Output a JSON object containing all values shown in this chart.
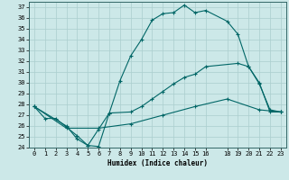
{
  "xlabel": "Humidex (Indice chaleur)",
  "ylabel": "",
  "bg_color": "#cce8e8",
  "grid_color": "#aacece",
  "line_color": "#006666",
  "xlim": [
    -0.5,
    23.5
  ],
  "ylim": [
    24,
    37.5
  ],
  "xticks": [
    0,
    1,
    2,
    3,
    4,
    5,
    6,
    7,
    8,
    9,
    10,
    11,
    12,
    13,
    14,
    15,
    16,
    18,
    19,
    20,
    21,
    22,
    23
  ],
  "yticks": [
    24,
    25,
    26,
    27,
    28,
    29,
    30,
    31,
    32,
    33,
    34,
    35,
    36,
    37
  ],
  "line1_x": [
    0,
    1,
    2,
    3,
    4,
    5,
    6,
    7,
    8,
    9,
    10,
    11,
    12,
    13,
    14,
    15,
    16,
    18,
    19,
    20,
    21,
    22,
    23
  ],
  "line1_y": [
    27.8,
    26.7,
    26.7,
    25.9,
    25.1,
    24.2,
    24.1,
    27.2,
    30.2,
    32.5,
    34.0,
    35.8,
    36.4,
    36.5,
    37.2,
    36.5,
    36.7,
    35.7,
    34.5,
    31.5,
    30.0,
    27.3,
    27.3
  ],
  "line2_x": [
    0,
    3,
    4,
    5,
    6,
    7,
    9,
    10,
    11,
    12,
    13,
    14,
    15,
    16,
    19,
    20,
    21,
    22,
    23
  ],
  "line2_y": [
    27.8,
    26.0,
    24.8,
    24.2,
    25.7,
    27.2,
    27.3,
    27.8,
    28.5,
    29.2,
    29.9,
    30.5,
    30.8,
    31.5,
    31.8,
    31.5,
    29.9,
    27.5,
    27.3
  ],
  "line3_x": [
    0,
    3,
    6,
    9,
    12,
    15,
    18,
    21,
    23
  ],
  "line3_y": [
    27.8,
    25.8,
    25.8,
    26.2,
    27.0,
    27.8,
    28.5,
    27.5,
    27.3
  ]
}
